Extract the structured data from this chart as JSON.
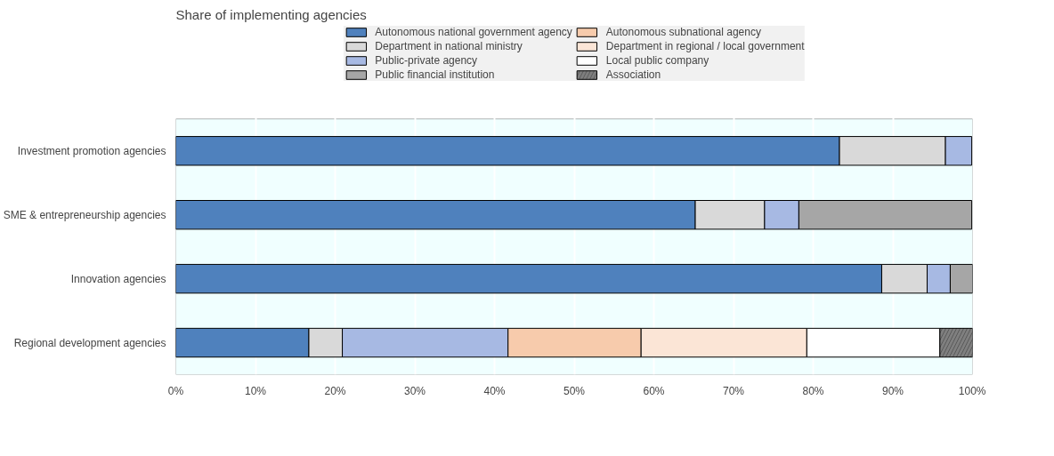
{
  "chart_data": {
    "type": "bar",
    "orientation": "horizontal",
    "stacked": true,
    "title": "Share of implementing agencies",
    "categories": [
      "Investment promotion agencies",
      "SME & entrepreneurship agencies",
      "Innovation agencies",
      "Regional development agencies"
    ],
    "series": [
      {
        "name": "Autonomous national government agency",
        "color": "#4f81bd",
        "values": [
          83.3,
          65.2,
          88.6,
          16.7
        ]
      },
      {
        "name": "Department in national ministry",
        "color": "#d9d9d9",
        "values": [
          13.3,
          8.7,
          5.7,
          4.2
        ]
      },
      {
        "name": "Public-private agency",
        "color": "#a7b9e3",
        "values": [
          3.3,
          4.3,
          2.9,
          20.8
        ]
      },
      {
        "name": "Public financial institution",
        "color": "#a6a6a6",
        "values": [
          null,
          21.7,
          2.9,
          null
        ]
      },
      {
        "name": "Autonomous subnational agency",
        "color": "#f7cbac",
        "values": [
          null,
          null,
          null,
          16.7
        ]
      },
      {
        "name": "Department in regional / local government",
        "color": "#fbe5d6",
        "values": [
          null,
          null,
          null,
          20.8
        ]
      },
      {
        "name": "Local public company",
        "color": "#ffffff",
        "values": [
          null,
          null,
          null,
          16.7
        ]
      },
      {
        "name": "Association",
        "color": "#7f7f7f",
        "values": [
          null,
          null,
          null,
          4.2
        ]
      }
    ],
    "xlim": [
      0,
      100
    ],
    "xticks": [
      {
        "value": 0,
        "label": "0%"
      },
      {
        "value": 10,
        "label": "10%"
      },
      {
        "value": 20,
        "label": "20%"
      },
      {
        "value": 30,
        "label": "30%"
      },
      {
        "value": 40,
        "label": "40%"
      },
      {
        "value": 50,
        "label": "50%"
      },
      {
        "value": 60,
        "label": "60%"
      },
      {
        "value": 70,
        "label": "70%"
      },
      {
        "value": 80,
        "label": "80%"
      },
      {
        "value": 90,
        "label": "90%"
      },
      {
        "value": 100,
        "label": "100%"
      }
    ],
    "grid": "x",
    "legend": "top"
  }
}
